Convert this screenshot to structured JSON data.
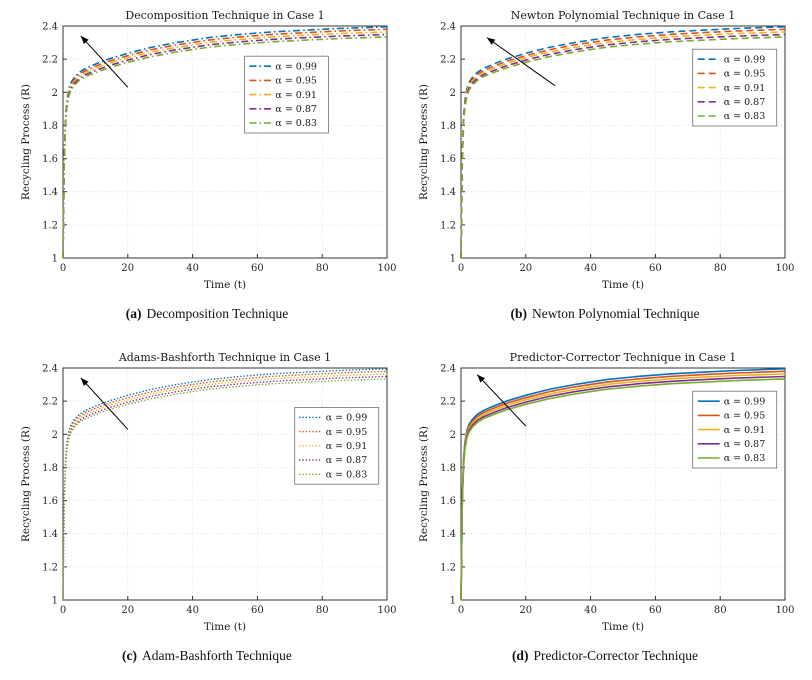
{
  "style": {
    "background": "#ffffff",
    "grid": "#d9d9d9",
    "axis": "#333333",
    "arrow": "#000000",
    "legend_border": "#707070",
    "series_colors": [
      "#0072BD",
      "#D95319",
      "#EDB120",
      "#7E2F8E",
      "#77AC30"
    ]
  },
  "captions": [
    {
      "label": "(a)",
      "text": "Decomposition Technique"
    },
    {
      "label": "(b)",
      "text": "Newton Polynomial Technique"
    },
    {
      "label": "(c)",
      "text": "Adam-Bashforth Technique"
    },
    {
      "label": "(d)",
      "text": "Predictor-Corrector Technique"
    }
  ],
  "chart_data": [
    {
      "type": "line",
      "title": "Decomposition Technique in Case 1",
      "xlabel": "Time (t)",
      "ylabel": "Recycling Process (R)",
      "xlim": [
        0,
        100
      ],
      "ylim": [
        1,
        2.4
      ],
      "xticks": [
        0,
        20,
        40,
        60,
        80,
        100
      ],
      "xtick_labels": [
        "0",
        "20",
        "40",
        "60",
        "80",
        "100"
      ],
      "yticks": [
        1,
        1.2,
        1.4,
        1.6,
        1.8,
        2,
        2.2,
        2.4
      ],
      "ytick_labels": [
        "1",
        "1.2",
        "1.4",
        "1.6",
        "1.8",
        "2",
        "2.2",
        "2.4"
      ],
      "grid": true,
      "line_style": "dashdot",
      "legend_position": "inside-right",
      "legend": {
        "x": 0.56,
        "y": 0.13
      },
      "arrow": {
        "from": [
          20,
          2.03
        ],
        "to": [
          5.5,
          2.34
        ]
      },
      "x": [
        0,
        0.4,
        0.8,
        1.2,
        1.8,
        2.5,
        3.5,
        5,
        7,
        10,
        14,
        20,
        27,
        35,
        45,
        55,
        65,
        75,
        85,
        100
      ],
      "series": [
        {
          "name": "α = 0.99",
          "color": "#0072BD",
          "values": [
            1,
            1.62,
            1.85,
            1.95,
            2.02,
            2.06,
            2.09,
            2.12,
            2.145,
            2.17,
            2.2,
            2.235,
            2.27,
            2.3,
            2.33,
            2.35,
            2.365,
            2.375,
            2.385,
            2.395
          ]
        },
        {
          "name": "α = 0.95",
          "color": "#D95319",
          "values": [
            1,
            1.613,
            1.841,
            1.94,
            2.009,
            2.048,
            2.078,
            2.108,
            2.132,
            2.157,
            2.187,
            2.221,
            2.256,
            2.286,
            2.315,
            2.335,
            2.35,
            2.36,
            2.37,
            2.38
          ]
        },
        {
          "name": "α = 0.91",
          "color": "#EDB120",
          "values": [
            1,
            1.606,
            1.831,
            1.929,
            1.998,
            2.037,
            2.066,
            2.095,
            2.12,
            2.144,
            2.174,
            2.208,
            2.242,
            2.271,
            2.301,
            2.32,
            2.335,
            2.345,
            2.355,
            2.364
          ]
        },
        {
          "name": "α = 0.87",
          "color": "#7E2F8E",
          "values": [
            1,
            1.6,
            1.822,
            1.919,
            1.986,
            2.025,
            2.054,
            2.083,
            2.107,
            2.131,
            2.16,
            2.194,
            2.228,
            2.257,
            2.286,
            2.305,
            2.32,
            2.33,
            2.339,
            2.349
          ]
        },
        {
          "name": "α = 0.83",
          "color": "#77AC30",
          "values": [
            1,
            1.593,
            1.813,
            1.908,
            1.975,
            2.013,
            2.042,
            2.071,
            2.095,
            2.119,
            2.147,
            2.181,
            2.214,
            2.243,
            2.272,
            2.291,
            2.305,
            2.315,
            2.324,
            2.334
          ]
        }
      ]
    },
    {
      "type": "line",
      "title": "Newton Polynomial Technique in Case 1",
      "xlabel": "Time (t)",
      "ylabel": "Recycling Process (R)",
      "xlim": [
        0,
        100
      ],
      "ylim": [
        1,
        2.4
      ],
      "xticks": [
        0,
        20,
        40,
        60,
        80,
        100
      ],
      "xtick_labels": [
        "0",
        "20",
        "40",
        "60",
        "80",
        "100"
      ],
      "yticks": [
        1,
        1.2,
        1.4,
        1.6,
        1.8,
        2,
        2.2,
        2.4
      ],
      "ytick_labels": [
        "1",
        "1.2",
        "1.4",
        "1.6",
        "1.8",
        "2",
        "2.2",
        "2.4"
      ],
      "grid": true,
      "line_style": "dashed",
      "legend_position": "inside-right",
      "legend": {
        "x": 0.715,
        "y": 0.1
      },
      "arrow": {
        "from": [
          29,
          2.04
        ],
        "to": [
          8,
          2.33
        ]
      },
      "x": [
        0,
        0.4,
        0.8,
        1.2,
        1.8,
        2.5,
        3.5,
        5,
        7,
        10,
        14,
        20,
        27,
        35,
        45,
        55,
        65,
        75,
        85,
        100
      ],
      "series": [
        {
          "name": "α = 0.99",
          "color": "#0072BD",
          "values": [
            1,
            1.62,
            1.85,
            1.95,
            2.02,
            2.06,
            2.09,
            2.12,
            2.145,
            2.17,
            2.2,
            2.235,
            2.27,
            2.3,
            2.33,
            2.35,
            2.365,
            2.375,
            2.385,
            2.395
          ]
        },
        {
          "name": "α = 0.95",
          "color": "#D95319",
          "values": [
            1,
            1.613,
            1.841,
            1.94,
            2.009,
            2.048,
            2.078,
            2.108,
            2.132,
            2.157,
            2.187,
            2.221,
            2.256,
            2.286,
            2.315,
            2.335,
            2.35,
            2.36,
            2.37,
            2.38
          ]
        },
        {
          "name": "α = 0.91",
          "color": "#EDB120",
          "values": [
            1,
            1.606,
            1.831,
            1.929,
            1.998,
            2.037,
            2.066,
            2.095,
            2.12,
            2.144,
            2.174,
            2.208,
            2.242,
            2.271,
            2.301,
            2.32,
            2.335,
            2.345,
            2.355,
            2.364
          ]
        },
        {
          "name": "α = 0.87",
          "color": "#7E2F8E",
          "values": [
            1,
            1.6,
            1.822,
            1.919,
            1.986,
            2.025,
            2.054,
            2.083,
            2.107,
            2.131,
            2.16,
            2.194,
            2.228,
            2.257,
            2.286,
            2.305,
            2.32,
            2.33,
            2.339,
            2.349
          ]
        },
        {
          "name": "α = 0.83",
          "color": "#77AC30",
          "values": [
            1,
            1.593,
            1.813,
            1.908,
            1.975,
            2.013,
            2.042,
            2.071,
            2.095,
            2.119,
            2.147,
            2.181,
            2.214,
            2.243,
            2.272,
            2.291,
            2.305,
            2.315,
            2.324,
            2.334
          ]
        }
      ]
    },
    {
      "type": "line",
      "title": "Adams-Bashforth Technique in Case 1",
      "xlabel": "Time (t)",
      "ylabel": "Recycling Process (R)",
      "xlim": [
        0,
        100
      ],
      "ylim": [
        1,
        2.4
      ],
      "xticks": [
        0,
        20,
        40,
        60,
        80,
        100
      ],
      "xtick_labels": [
        "0",
        "20",
        "40",
        "60",
        "80",
        "100"
      ],
      "yticks": [
        1,
        1.2,
        1.4,
        1.6,
        1.8,
        2,
        2.2,
        2.4
      ],
      "ytick_labels": [
        "1",
        "1.2",
        "1.4",
        "1.6",
        "1.8",
        "2",
        "2.2",
        "2.4"
      ],
      "grid": true,
      "line_style": "dotted",
      "legend_position": "inside-right",
      "legend": {
        "x": 0.715,
        "y": 0.17
      },
      "arrow": {
        "from": [
          20,
          2.03
        ],
        "to": [
          5.5,
          2.34
        ]
      },
      "x": [
        0,
        0.4,
        0.8,
        1.2,
        1.8,
        2.5,
        3.5,
        5,
        7,
        10,
        14,
        20,
        27,
        35,
        45,
        55,
        65,
        75,
        85,
        100
      ],
      "series": [
        {
          "name": "α = 0.99",
          "color": "#0072BD",
          "values": [
            1,
            1.62,
            1.85,
            1.95,
            2.02,
            2.06,
            2.09,
            2.12,
            2.145,
            2.17,
            2.2,
            2.235,
            2.27,
            2.3,
            2.33,
            2.35,
            2.365,
            2.375,
            2.385,
            2.395
          ]
        },
        {
          "name": "α = 0.95",
          "color": "#D95319",
          "values": [
            1,
            1.613,
            1.841,
            1.94,
            2.009,
            2.048,
            2.078,
            2.108,
            2.132,
            2.157,
            2.187,
            2.221,
            2.256,
            2.286,
            2.315,
            2.335,
            2.35,
            2.36,
            2.37,
            2.38
          ]
        },
        {
          "name": "α = 0.91",
          "color": "#EDB120",
          "values": [
            1,
            1.606,
            1.831,
            1.929,
            1.998,
            2.037,
            2.066,
            2.095,
            2.12,
            2.144,
            2.174,
            2.208,
            2.242,
            2.271,
            2.301,
            2.32,
            2.335,
            2.345,
            2.355,
            2.364
          ]
        },
        {
          "name": "α = 0.87",
          "color": "#7E2F8E",
          "values": [
            1,
            1.6,
            1.822,
            1.919,
            1.986,
            2.025,
            2.054,
            2.083,
            2.107,
            2.131,
            2.16,
            2.194,
            2.228,
            2.257,
            2.286,
            2.305,
            2.32,
            2.33,
            2.339,
            2.349
          ]
        },
        {
          "name": "α = 0.83",
          "color": "#77AC30",
          "values": [
            1,
            1.593,
            1.813,
            1.908,
            1.975,
            2.013,
            2.042,
            2.071,
            2.095,
            2.119,
            2.147,
            2.181,
            2.214,
            2.243,
            2.272,
            2.291,
            2.305,
            2.315,
            2.324,
            2.334
          ]
        }
      ]
    },
    {
      "type": "line",
      "title": "Predictor-Corrector Technique in Case 1",
      "xlabel": "Time (t)",
      "ylabel": "Recycling Process (R)",
      "xlim": [
        0,
        100
      ],
      "ylim": [
        1,
        2.4
      ],
      "xticks": [
        0,
        20,
        40,
        60,
        80,
        100
      ],
      "xtick_labels": [
        "0",
        "20",
        "40",
        "60",
        "80",
        "100"
      ],
      "yticks": [
        1,
        1.2,
        1.4,
        1.6,
        1.8,
        2,
        2.2,
        2.4
      ],
      "ytick_labels": [
        "1",
        "1.2",
        "1.4",
        "1.6",
        "1.8",
        "2",
        "2.2",
        "2.4"
      ],
      "grid": true,
      "line_style": "solid",
      "legend_position": "inside-right",
      "legend": {
        "x": 0.715,
        "y": 0.1
      },
      "arrow": {
        "from": [
          20,
          2.05
        ],
        "to": [
          5,
          2.36
        ]
      },
      "x": [
        0,
        0.4,
        0.8,
        1.2,
        1.8,
        2.5,
        3.5,
        5,
        7,
        10,
        14,
        20,
        27,
        35,
        45,
        55,
        65,
        75,
        85,
        100
      ],
      "series": [
        {
          "name": "α = 0.99",
          "color": "#0072BD",
          "values": [
            1,
            1.62,
            1.85,
            1.95,
            2.02,
            2.06,
            2.09,
            2.12,
            2.145,
            2.17,
            2.2,
            2.235,
            2.27,
            2.3,
            2.33,
            2.35,
            2.365,
            2.375,
            2.385,
            2.395
          ]
        },
        {
          "name": "α = 0.95",
          "color": "#D95319",
          "values": [
            1,
            1.613,
            1.841,
            1.94,
            2.009,
            2.048,
            2.078,
            2.108,
            2.132,
            2.157,
            2.187,
            2.221,
            2.256,
            2.286,
            2.315,
            2.335,
            2.35,
            2.36,
            2.37,
            2.38
          ]
        },
        {
          "name": "α = 0.91",
          "color": "#EDB120",
          "values": [
            1,
            1.606,
            1.831,
            1.929,
            1.998,
            2.037,
            2.066,
            2.095,
            2.12,
            2.144,
            2.174,
            2.208,
            2.242,
            2.271,
            2.301,
            2.32,
            2.335,
            2.345,
            2.355,
            2.364
          ]
        },
        {
          "name": "α = 0.87",
          "color": "#7E2F8E",
          "values": [
            1,
            1.6,
            1.822,
            1.919,
            1.986,
            2.025,
            2.054,
            2.083,
            2.107,
            2.131,
            2.16,
            2.194,
            2.228,
            2.257,
            2.286,
            2.305,
            2.32,
            2.33,
            2.339,
            2.349
          ]
        },
        {
          "name": "α = 0.83",
          "color": "#77AC30",
          "values": [
            1,
            1.593,
            1.813,
            1.908,
            1.975,
            2.013,
            2.042,
            2.071,
            2.095,
            2.119,
            2.147,
            2.181,
            2.214,
            2.243,
            2.272,
            2.291,
            2.305,
            2.315,
            2.324,
            2.334
          ]
        }
      ]
    }
  ]
}
